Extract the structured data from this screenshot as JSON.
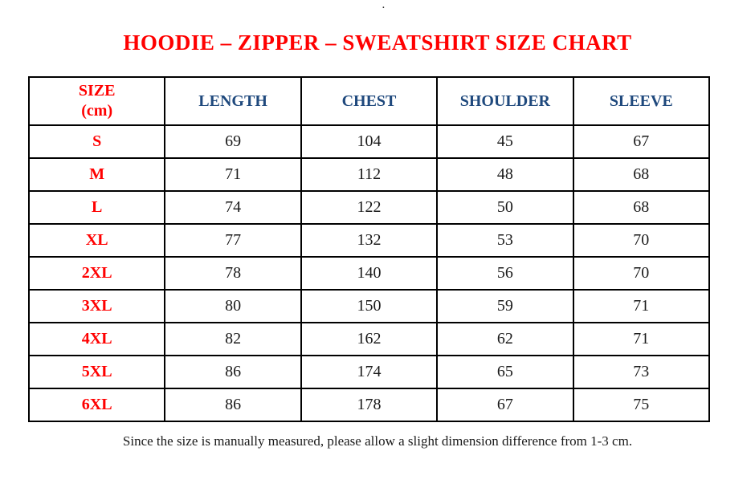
{
  "page": {
    "stray_mark": ".",
    "title": "HOODIE – ZIPPER – SWEATSHIRT SIZE CHART",
    "footnote": "Since the size is manually measured, please allow a slight dimension difference from 1-3 cm."
  },
  "colors": {
    "title_red": "#ff0000",
    "header_blue": "#1f497d",
    "body_text": "#1a1a1a",
    "border": "#000000",
    "background": "#ffffff"
  },
  "table": {
    "header": {
      "size_line1": "SIZE",
      "size_line2": "(cm)",
      "columns": [
        "LENGTH",
        "CHEST",
        "SHOULDER",
        "SLEEVE"
      ]
    },
    "rows": [
      {
        "size": "S",
        "length": "69",
        "chest": "104",
        "shoulder": "45",
        "sleeve": "67"
      },
      {
        "size": "M",
        "length": "71",
        "chest": "112",
        "shoulder": "48",
        "sleeve": "68"
      },
      {
        "size": "L",
        "length": "74",
        "chest": "122",
        "shoulder": "50",
        "sleeve": "68"
      },
      {
        "size": "XL",
        "length": "77",
        "chest": "132",
        "shoulder": "53",
        "sleeve": "70"
      },
      {
        "size": "2XL",
        "length": "78",
        "chest": "140",
        "shoulder": "56",
        "sleeve": "70"
      },
      {
        "size": "3XL",
        "length": "80",
        "chest": "150",
        "shoulder": "59",
        "sleeve": "71"
      },
      {
        "size": "4XL",
        "length": "82",
        "chest": "162",
        "shoulder": "62",
        "sleeve": "71"
      },
      {
        "size": "5XL",
        "length": "86",
        "chest": "174",
        "shoulder": "65",
        "sleeve": "73"
      },
      {
        "size": "6XL",
        "length": "86",
        "chest": "178",
        "shoulder": "67",
        "sleeve": "75"
      }
    ]
  }
}
